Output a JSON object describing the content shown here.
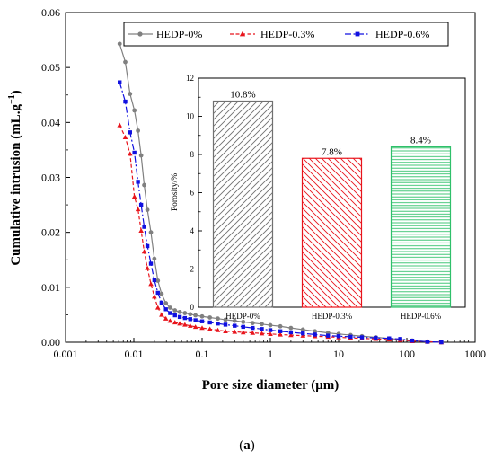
{
  "caption_prefix": "(",
  "caption_letter": "a",
  "caption_suffix": ")",
  "chart_data": [
    {
      "type": "line",
      "title": "",
      "xlabel": "Pore size diameter (μm)",
      "ylabel_main": "Cumulative intrusion (mL.g",
      "ylabel_exp": "−1",
      "ylabel_end": ")",
      "x_scale": "log",
      "xlim": [
        0.001,
        1000
      ],
      "ylim": [
        0,
        0.06
      ],
      "x_ticks": [
        0.001,
        0.01,
        0.1,
        1,
        10,
        100,
        1000
      ],
      "x_tick_labels": [
        "0.001",
        "0.01",
        "0.1",
        "1",
        "10",
        "100",
        "1000"
      ],
      "y_ticks": [
        0,
        0.01,
        0.02,
        0.03,
        0.04,
        0.05,
        0.06
      ],
      "y_tick_labels": [
        "0.00",
        "0.01",
        "0.02",
        "0.03",
        "0.04",
        "0.05",
        "0.06"
      ],
      "grid": false,
      "legend_position": "top",
      "series": [
        {
          "name": "HEDP-0%",
          "color": "#808080",
          "dash": "solid",
          "marker": "circle",
          "x": [
            0.0062,
            0.0075,
            0.0088,
            0.0102,
            0.0115,
            0.0128,
            0.0142,
            0.0158,
            0.0178,
            0.02,
            0.0225,
            0.0255,
            0.0295,
            0.034,
            0.04,
            0.047,
            0.056,
            0.067,
            0.08,
            0.1,
            0.13,
            0.17,
            0.22,
            0.3,
            0.4,
            0.55,
            0.75,
            1.0,
            1.4,
            2.0,
            3.0,
            4.5,
            7.0,
            10,
            15,
            22,
            35,
            55,
            80,
            120,
            200,
            320
          ],
          "y": [
            0.0543,
            0.051,
            0.0452,
            0.0422,
            0.0385,
            0.034,
            0.0286,
            0.0241,
            0.02,
            0.0152,
            0.0112,
            0.0088,
            0.0071,
            0.0063,
            0.0058,
            0.0055,
            0.0053,
            0.0051,
            0.0049,
            0.0047,
            0.0045,
            0.0043,
            0.0041,
            0.0039,
            0.0037,
            0.0035,
            0.0033,
            0.0031,
            0.0029,
            0.0026,
            0.0023,
            0.002,
            0.0017,
            0.0015,
            0.0013,
            0.0011,
            0.0009,
            0.0007,
            0.0005,
            0.0003,
            0.0001,
            0.0
          ]
        },
        {
          "name": "HEDP-0.3%",
          "color": "#e8141c",
          "dash": "dashed",
          "marker": "triangle",
          "x": [
            0.0062,
            0.0075,
            0.0088,
            0.0102,
            0.0115,
            0.0128,
            0.0142,
            0.0158,
            0.0178,
            0.02,
            0.0225,
            0.0255,
            0.0295,
            0.034,
            0.04,
            0.047,
            0.056,
            0.067,
            0.08,
            0.1,
            0.13,
            0.17,
            0.22,
            0.3,
            0.4,
            0.55,
            0.75,
            1.0,
            1.4,
            2.0,
            3.0,
            4.5,
            7.0,
            10,
            15,
            22,
            35,
            55,
            80,
            120,
            200,
            320
          ],
          "y": [
            0.0395,
            0.0373,
            0.0343,
            0.0265,
            0.0242,
            0.0203,
            0.0165,
            0.0135,
            0.0106,
            0.0083,
            0.0063,
            0.005,
            0.0043,
            0.0039,
            0.0036,
            0.0034,
            0.0032,
            0.003,
            0.0028,
            0.0026,
            0.0024,
            0.0022,
            0.002,
            0.0019,
            0.0018,
            0.0017,
            0.0016,
            0.0015,
            0.0014,
            0.0013,
            0.0012,
            0.0011,
            0.001,
            0.0009,
            0.0008,
            0.0007,
            0.0006,
            0.0005,
            0.0004,
            0.0002,
            0.0001,
            0.0
          ]
        },
        {
          "name": "HEDP-0.6%",
          "color": "#1010e0",
          "dash": "dashdot",
          "marker": "square",
          "x": [
            0.0062,
            0.0075,
            0.0088,
            0.0102,
            0.0115,
            0.0128,
            0.0142,
            0.0158,
            0.0178,
            0.02,
            0.0225,
            0.0255,
            0.0295,
            0.034,
            0.04,
            0.047,
            0.056,
            0.067,
            0.08,
            0.1,
            0.13,
            0.17,
            0.22,
            0.3,
            0.4,
            0.55,
            0.75,
            1.0,
            1.4,
            2.0,
            3.0,
            4.5,
            7.0,
            10,
            15,
            22,
            35,
            55,
            80,
            120,
            200,
            320
          ],
          "y": [
            0.0473,
            0.0438,
            0.0382,
            0.0345,
            0.0292,
            0.025,
            0.021,
            0.0175,
            0.0143,
            0.0113,
            0.009,
            0.0072,
            0.006,
            0.0053,
            0.0049,
            0.0046,
            0.0044,
            0.0042,
            0.004,
            0.0038,
            0.0036,
            0.0034,
            0.0032,
            0.003,
            0.0028,
            0.0026,
            0.0024,
            0.0022,
            0.002,
            0.0018,
            0.0016,
            0.0014,
            0.0012,
            0.0011,
            0.001,
            0.0009,
            0.0008,
            0.0007,
            0.0006,
            0.0003,
            0.0001,
            0.0
          ]
        }
      ]
    },
    {
      "type": "bar",
      "title": "",
      "xlabel": "",
      "ylabel": "Porosity/%",
      "ylim": [
        0,
        12
      ],
      "y_ticks": [
        0,
        2,
        4,
        6,
        8,
        10,
        12
      ],
      "y_tick_labels": [
        "0",
        "2",
        "4",
        "6",
        "8",
        "10",
        "12"
      ],
      "categories": [
        "HEDP-0%",
        "HEDP-0.3%",
        "HEDP-0.6%"
      ],
      "values": [
        10.8,
        7.8,
        8.4
      ],
      "value_labels": [
        "10.8%",
        "7.8%",
        "8.4%"
      ],
      "colors": [
        "#707070",
        "#e8141c",
        "#2fc06a"
      ],
      "hatch": [
        "diagonal-up",
        "diagonal-down",
        "horizontal"
      ]
    }
  ]
}
